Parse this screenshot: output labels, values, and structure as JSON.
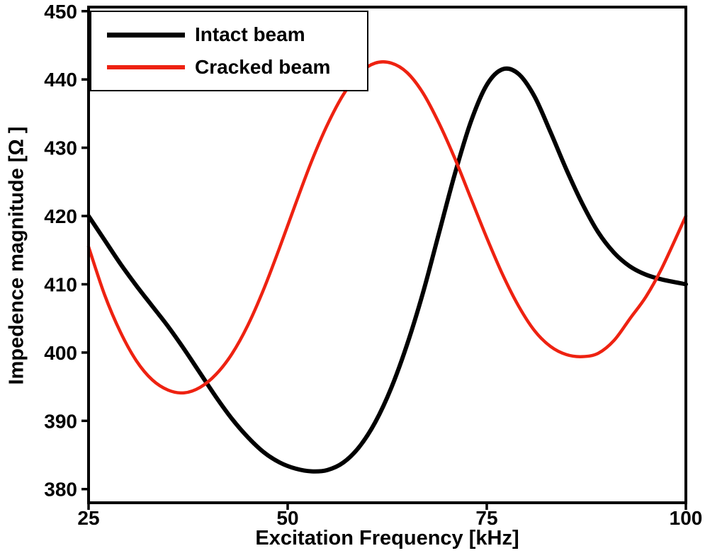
{
  "chart_data": {
    "type": "line",
    "title": "",
    "xlabel": "Excitation Frequency [kHz]",
    "ylabel": "Impedence magnitude [Ω ]",
    "xlim": [
      25,
      100
    ],
    "ylim": [
      378,
      450.6
    ],
    "x_ticks": [
      25,
      50,
      75,
      100
    ],
    "y_ticks": [
      380,
      390,
      400,
      410,
      420,
      430,
      440,
      450
    ],
    "grid": false,
    "legend_position": "top-left",
    "axis_color": "#000000",
    "background_color": "#ffffff",
    "series": [
      {
        "name": "Intact beam",
        "color": "#000000",
        "line_width": 6,
        "points": [
          [
            25,
            420
          ],
          [
            27,
            416.5
          ],
          [
            29,
            413
          ],
          [
            31,
            409.8
          ],
          [
            33,
            406.8
          ],
          [
            35,
            403.8
          ],
          [
            37,
            400.5
          ],
          [
            39,
            397
          ],
          [
            41,
            393.5
          ],
          [
            43,
            390.3
          ],
          [
            45,
            387.6
          ],
          [
            47,
            385.4
          ],
          [
            49,
            383.9
          ],
          [
            51,
            383
          ],
          [
            53,
            382.6
          ],
          [
            55,
            382.8
          ],
          [
            57,
            383.9
          ],
          [
            59,
            386.2
          ],
          [
            61,
            389.8
          ],
          [
            63,
            394.8
          ],
          [
            65,
            401.2
          ],
          [
            67,
            408.8
          ],
          [
            69,
            417.5
          ],
          [
            71,
            426.2
          ],
          [
            73,
            433.8
          ],
          [
            75,
            439.2
          ],
          [
            77,
            441.5
          ],
          [
            79,
            440.8
          ],
          [
            81,
            437.5
          ],
          [
            83,
            432.3
          ],
          [
            85,
            426.8
          ],
          [
            87,
            421.8
          ],
          [
            89,
            417.6
          ],
          [
            91,
            414.6
          ],
          [
            93,
            412.6
          ],
          [
            95,
            411.4
          ],
          [
            97,
            410.7
          ],
          [
            100,
            410
          ]
        ]
      },
      {
        "name": "Cracked beam",
        "color": "#ee2211",
        "line_width": 4.5,
        "points": [
          [
            25,
            415.5
          ],
          [
            27,
            408.5
          ],
          [
            29,
            403
          ],
          [
            31,
            398.8
          ],
          [
            33,
            396
          ],
          [
            35,
            394.5
          ],
          [
            37,
            394.1
          ],
          [
            39,
            394.9
          ],
          [
            41,
            396.8
          ],
          [
            43,
            399.8
          ],
          [
            45,
            404
          ],
          [
            47,
            409.3
          ],
          [
            49,
            415.4
          ],
          [
            51,
            421.8
          ],
          [
            53,
            428
          ],
          [
            55,
            433.4
          ],
          [
            57,
            437.8
          ],
          [
            59,
            440.9
          ],
          [
            61,
            442.4
          ],
          [
            63,
            442.4
          ],
          [
            65,
            441
          ],
          [
            67,
            438
          ],
          [
            69,
            433.6
          ],
          [
            71,
            428.4
          ],
          [
            73,
            422.6
          ],
          [
            75,
            416.8
          ],
          [
            77,
            411.4
          ],
          [
            79,
            406.8
          ],
          [
            81,
            403.2
          ],
          [
            83,
            400.9
          ],
          [
            85,
            399.7
          ],
          [
            87,
            399.4
          ],
          [
            89,
            399.9
          ],
          [
            91,
            401.8
          ],
          [
            93,
            405
          ],
          [
            95,
            408.2
          ],
          [
            97,
            412.4
          ],
          [
            100,
            420
          ]
        ]
      }
    ]
  }
}
